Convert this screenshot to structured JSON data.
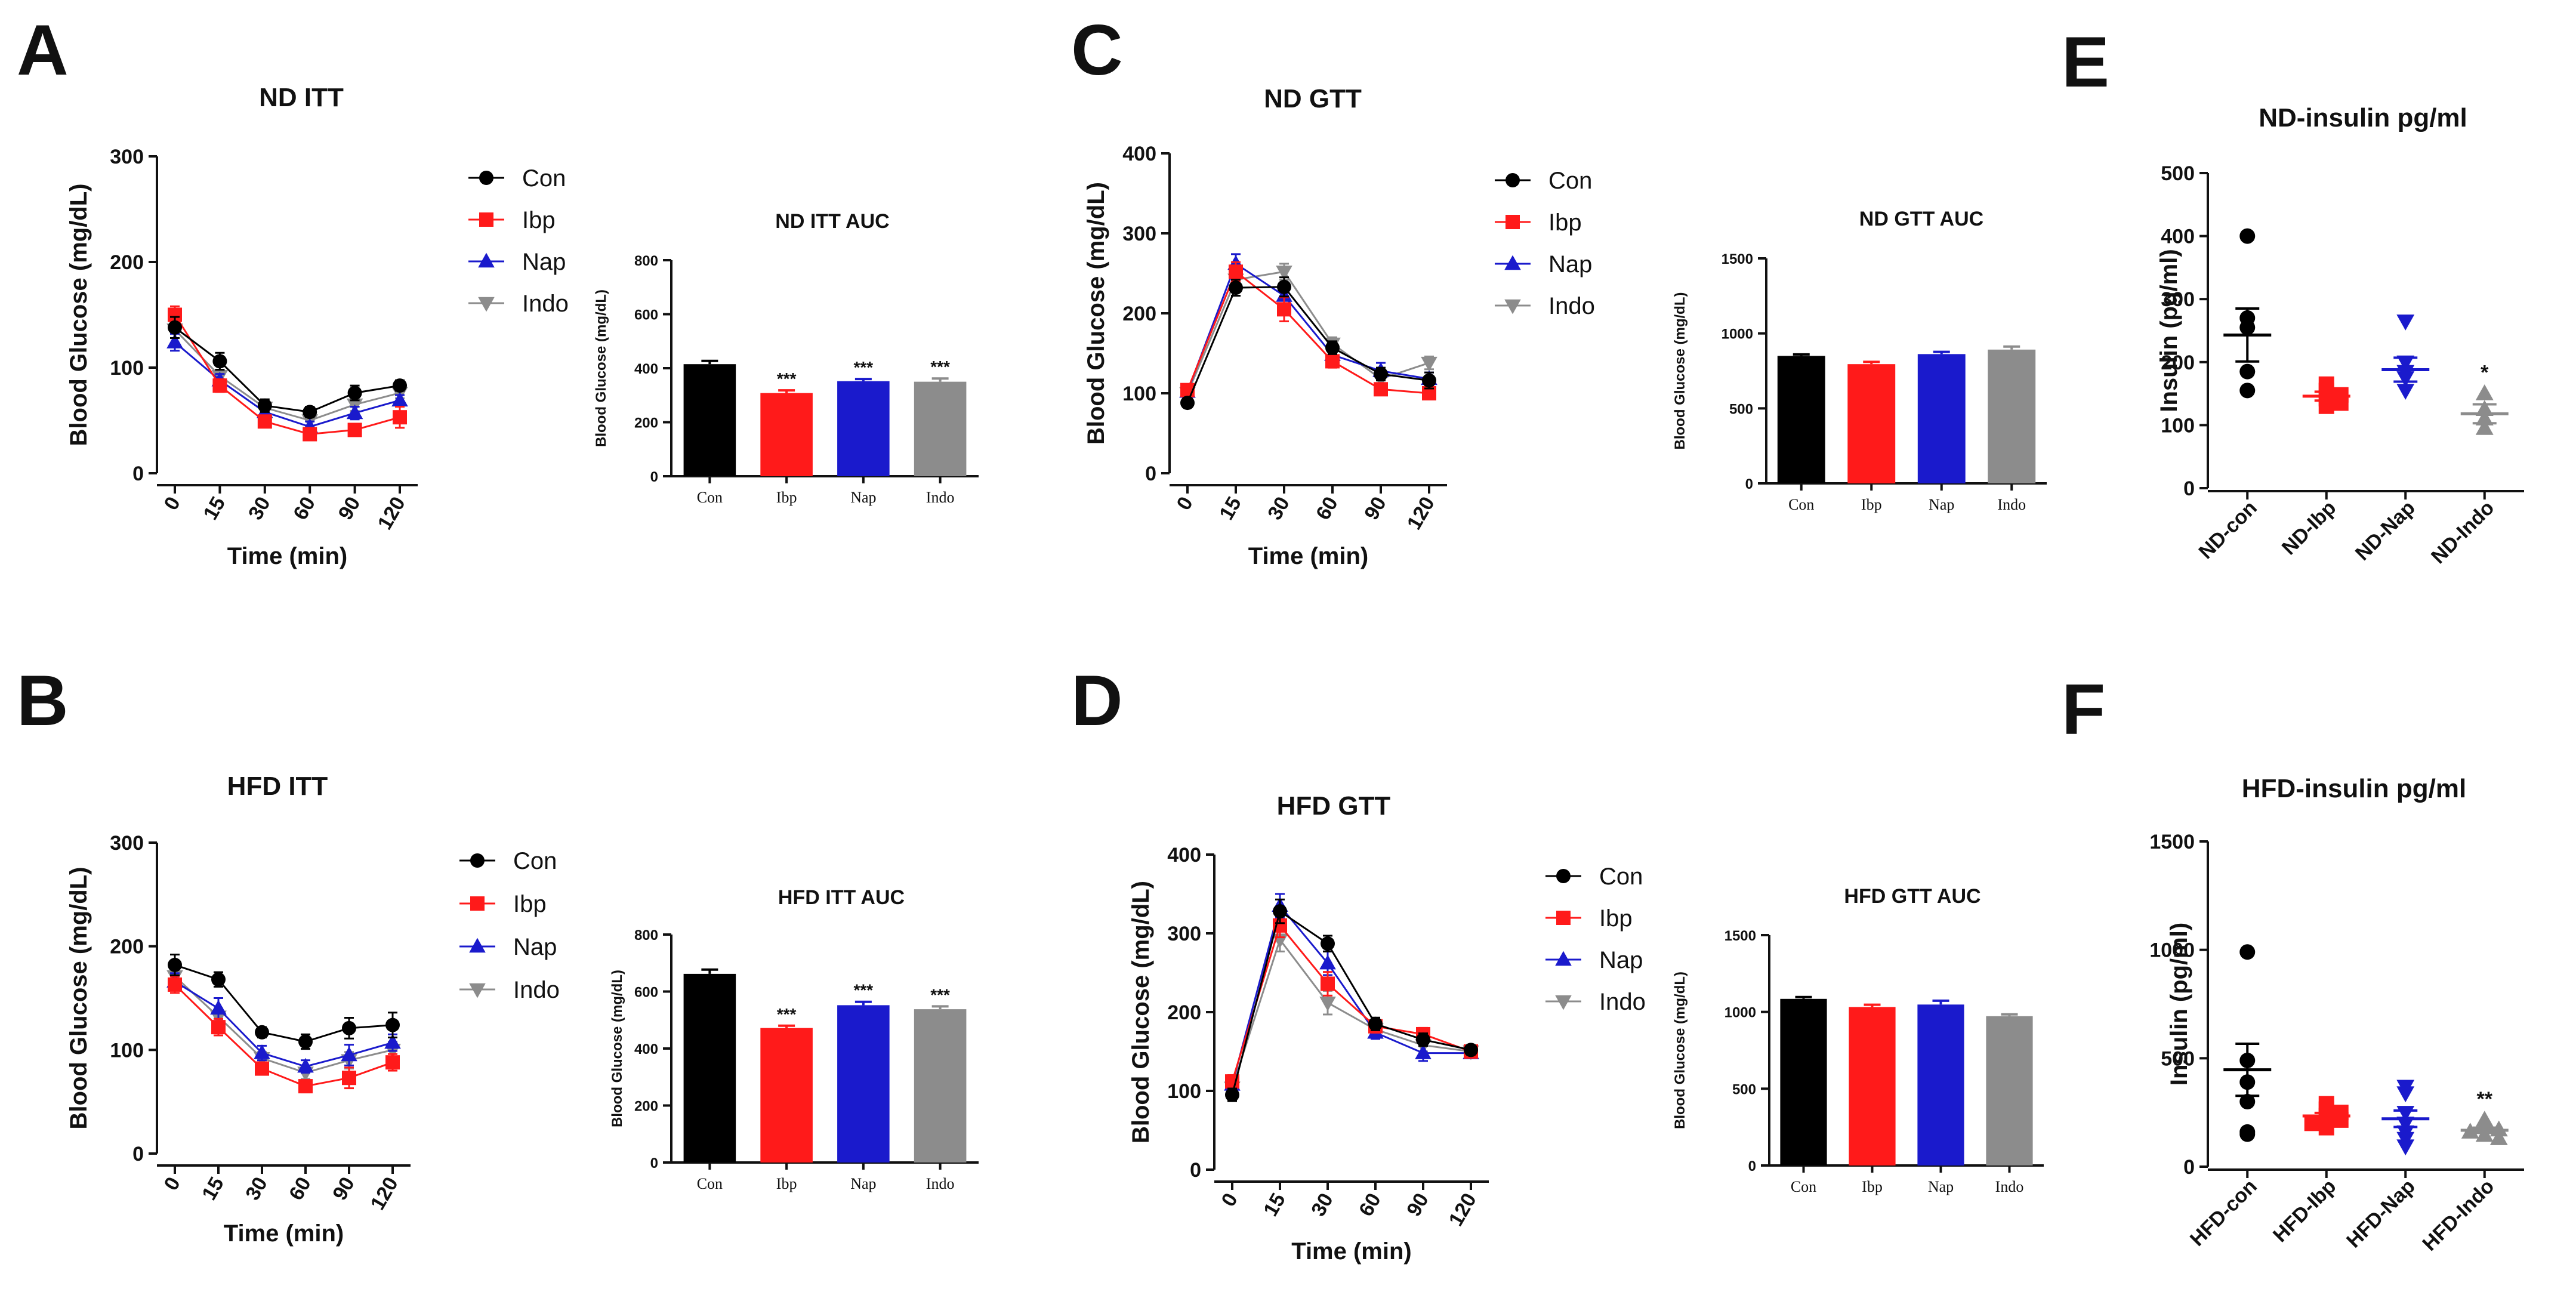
{
  "panel_labels": [
    "A",
    "B",
    "C",
    "D",
    "E",
    "F"
  ],
  "colors": {
    "Con": "#000000",
    "Ibp": "#ff1a1a",
    "Nap": "#1a1acc",
    "Indo": "#8c8c8c"
  },
  "chart_data": [
    {
      "id": "nd-itt",
      "panel": "A",
      "type": "line",
      "title": "ND ITT",
      "xlabel": "Time (min)",
      "ylabel": "Blood Glucose (mg/dL)",
      "x": [
        0,
        15,
        30,
        60,
        90,
        120
      ],
      "xticks": [
        "0",
        "15",
        "30",
        "60",
        "90",
        "120"
      ],
      "ylim": [
        0,
        300
      ],
      "yticks": [
        0,
        100,
        200,
        300
      ],
      "series": [
        {
          "name": "Con",
          "marker": "circle",
          "values": [
            138,
            106,
            64,
            58,
            76,
            83
          ],
          "err": [
            10,
            8,
            6,
            5,
            7,
            5
          ]
        },
        {
          "name": "Ibp",
          "marker": "square",
          "values": [
            150,
            83,
            49,
            37,
            41,
            53
          ],
          "err": [
            8,
            6,
            5,
            5,
            5,
            10
          ]
        },
        {
          "name": "Nap",
          "marker": "triangle",
          "values": [
            124,
            88,
            58,
            44,
            57,
            69
          ],
          "err": [
            8,
            6,
            5,
            5,
            6,
            5
          ]
        },
        {
          "name": "Indo",
          "marker": "triangle-down",
          "values": [
            136,
            92,
            62,
            50,
            65,
            76
          ],
          "err": [
            8,
            6,
            5,
            5,
            6,
            5
          ]
        }
      ]
    },
    {
      "id": "nd-itt-auc",
      "panel": "A",
      "type": "bar",
      "title": "ND ITT AUC",
      "ylabel": "Blood Glucose (mg/dL)",
      "categories": [
        "Con",
        "Ibp",
        "Nap",
        "Indo"
      ],
      "values": [
        415,
        308,
        352,
        350
      ],
      "err": [
        12,
        10,
        8,
        12
      ],
      "sig": [
        "",
        "***",
        "***",
        "***"
      ],
      "ylim": [
        0,
        800
      ],
      "yticks": [
        0,
        200,
        400,
        600,
        800
      ]
    },
    {
      "id": "hfd-itt",
      "panel": "B",
      "type": "line",
      "title": "HFD ITT",
      "xlabel": "Time (min)",
      "ylabel": "Blood Glucose (mg/dL)",
      "x": [
        0,
        15,
        30,
        60,
        90,
        120
      ],
      "xticks": [
        "0",
        "15",
        "30",
        "60",
        "90",
        "120"
      ],
      "ylim": [
        0,
        300
      ],
      "yticks": [
        0,
        100,
        200,
        300
      ],
      "series": [
        {
          "name": "Con",
          "marker": "circle",
          "values": [
            182,
            168,
            117,
            108,
            121,
            124
          ],
          "err": [
            10,
            7,
            5,
            7,
            10,
            12
          ]
        },
        {
          "name": "Ibp",
          "marker": "square",
          "values": [
            163,
            122,
            82,
            65,
            73,
            88
          ],
          "err": [
            8,
            8,
            6,
            6,
            10,
            8
          ]
        },
        {
          "name": "Nap",
          "marker": "triangle",
          "values": [
            166,
            140,
            97,
            84,
            95,
            107
          ],
          "err": [
            8,
            10,
            7,
            6,
            10,
            8
          ]
        },
        {
          "name": "Indo",
          "marker": "triangle-down",
          "values": [
            171,
            132,
            92,
            78,
            90,
            100
          ],
          "err": [
            8,
            8,
            6,
            6,
            8,
            8
          ]
        }
      ]
    },
    {
      "id": "hfd-itt-auc",
      "panel": "B",
      "type": "bar",
      "title": "HFD ITT AUC",
      "ylabel": "Blood Glucose (mg/dL)",
      "categories": [
        "Con",
        "Ibp",
        "Nap",
        "Indo"
      ],
      "values": [
        662,
        472,
        552,
        538
      ],
      "err": [
        15,
        8,
        12,
        10
      ],
      "sig": [
        "",
        "***",
        "***",
        "***"
      ],
      "ylim": [
        0,
        800
      ],
      "yticks": [
        0,
        200,
        400,
        600,
        800
      ]
    },
    {
      "id": "nd-gtt",
      "panel": "C",
      "type": "line",
      "title": "ND GTT",
      "xlabel": "Time (min)",
      "ylabel": "Blood Glucose (mg/dL)",
      "x": [
        0,
        15,
        30,
        60,
        90,
        120
      ],
      "xticks": [
        "0",
        "15",
        "30",
        "60",
        "90",
        "120"
      ],
      "ylim": [
        0,
        400
      ],
      "yticks": [
        0,
        100,
        200,
        300,
        400
      ],
      "series": [
        {
          "name": "Con",
          "marker": "circle",
          "values": [
            88,
            232,
            233,
            157,
            124,
            116
          ],
          "err": [
            5,
            10,
            12,
            8,
            8,
            10
          ]
        },
        {
          "name": "Ibp",
          "marker": "square",
          "values": [
            104,
            252,
            205,
            140,
            105,
            100
          ],
          "err": [
            6,
            12,
            15,
            8,
            7,
            7
          ]
        },
        {
          "name": "Nap",
          "marker": "triangle",
          "values": [
            102,
            262,
            222,
            148,
            128,
            118
          ],
          "err": [
            6,
            12,
            12,
            8,
            10,
            8
          ]
        },
        {
          "name": "Indo",
          "marker": "triangle-down",
          "values": [
            100,
            242,
            252,
            162,
            118,
            138
          ],
          "err": [
            6,
            10,
            10,
            8,
            8,
            8
          ]
        }
      ]
    },
    {
      "id": "nd-gtt-auc",
      "panel": "C",
      "type": "bar",
      "title": "ND GTT AUC",
      "ylabel": "Blood Glucose (mg/dL)",
      "categories": [
        "Con",
        "Ibp",
        "Nap",
        "Indo"
      ],
      "values": [
        850,
        795,
        862,
        892
      ],
      "err": [
        10,
        15,
        15,
        20
      ],
      "sig": [
        "",
        "",
        "",
        ""
      ],
      "ylim": [
        0,
        1500
      ],
      "yticks": [
        0,
        500,
        1000,
        1500
      ]
    },
    {
      "id": "hfd-gtt",
      "panel": "D",
      "type": "line",
      "title": "HFD GTT",
      "xlabel": "Time (min)",
      "ylabel": "Blood Glucose (mg/dL)",
      "x": [
        0,
        15,
        30,
        60,
        90,
        120
      ],
      "xticks": [
        "0",
        "15",
        "30",
        "60",
        "90",
        "120"
      ],
      "ylim": [
        0,
        400
      ],
      "yticks": [
        0,
        100,
        200,
        300,
        400
      ],
      "series": [
        {
          "name": "Con",
          "marker": "circle",
          "values": [
            95,
            328,
            287,
            185,
            165,
            152
          ],
          "err": [
            8,
            15,
            10,
            8,
            8,
            6
          ]
        },
        {
          "name": "Ibp",
          "marker": "square",
          "values": [
            112,
            310,
            236,
            182,
            172,
            150
          ],
          "err": [
            8,
            15,
            15,
            8,
            8,
            6
          ]
        },
        {
          "name": "Nap",
          "marker": "triangle",
          "values": [
            108,
            335,
            262,
            174,
            148,
            148
          ],
          "err": [
            8,
            15,
            15,
            8,
            10,
            6
          ]
        },
        {
          "name": "Indo",
          "marker": "triangle-down",
          "values": [
            104,
            292,
            212,
            178,
            158,
            150
          ],
          "err": [
            8,
            15,
            15,
            8,
            8,
            6
          ]
        }
      ]
    },
    {
      "id": "hfd-gtt-auc",
      "panel": "D",
      "type": "bar",
      "title": "HFD GTT AUC",
      "ylabel": "Blood Glucose (mg/dL)",
      "categories": [
        "Con",
        "Ibp",
        "Nap",
        "Indo"
      ],
      "values": [
        1085,
        1032,
        1048,
        972
      ],
      "err": [
        12,
        15,
        25,
        12
      ],
      "sig": [
        "",
        "",
        "",
        ""
      ],
      "ylim": [
        0,
        1500
      ],
      "yticks": [
        0,
        500,
        1000,
        1500
      ]
    },
    {
      "id": "nd-insulin",
      "panel": "E",
      "type": "scatter",
      "title": "ND-insulin pg/ml",
      "ylabel": "Insulin (pg/ml)",
      "categories": [
        "ND-con",
        "ND-Ibp",
        "ND-Nap",
        "ND-Indo"
      ],
      "ylim": [
        0,
        500
      ],
      "yticks": [
        0,
        100,
        200,
        300,
        400,
        500
      ],
      "groups": [
        {
          "name": "ND-con",
          "key": "Con",
          "marker": "circle",
          "points": [
            400,
            270,
            255,
            185,
            155
          ],
          "mean": 243,
          "sem": 42,
          "sig": ""
        },
        {
          "name": "ND-Ibp",
          "key": "Ibp",
          "marker": "square",
          "points": [
            165,
            155,
            148,
            142,
            135,
            130
          ],
          "mean": 146,
          "sem": 7,
          "sig": ""
        },
        {
          "name": "ND-Nap",
          "key": "Nap",
          "marker": "triangle-down",
          "points": [
            265,
            200,
            185,
            175,
            155
          ],
          "mean": 188,
          "sem": 19,
          "sig": ""
        },
        {
          "name": "ND-Indo",
          "key": "Indo",
          "marker": "triangle",
          "points": [
            150,
            125,
            110,
            95
          ],
          "mean": 118,
          "sem": 15,
          "sig": "*"
        }
      ]
    },
    {
      "id": "hfd-insulin",
      "panel": "F",
      "type": "scatter",
      "title": "HFD-insulin pg/ml",
      "ylabel": "Insulin (pg/ml)",
      "categories": [
        "HFD-con",
        "HFD-Ibp",
        "HFD-Nap",
        "HFD-Indo"
      ],
      "ylim": [
        0,
        1500
      ],
      "yticks": [
        0,
        500,
        1000,
        1500
      ],
      "groups": [
        {
          "name": "HFD-con",
          "key": "Con",
          "marker": "circle",
          "points": [
            990,
            490,
            390,
            300,
            160,
            150
          ],
          "mean": 447,
          "sem": 120,
          "sig": ""
        },
        {
          "name": "HFD-Ibp",
          "key": "Ibp",
          "marker": "square",
          "points": [
            290,
            265,
            250,
            235,
            215,
            200,
            180
          ],
          "mean": 234,
          "sem": 14,
          "sig": ""
        },
        {
          "name": "HFD-Nap",
          "key": "Nap",
          "marker": "triangle-down",
          "points": [
            370,
            340,
            250,
            200,
            160,
            130,
            95
          ],
          "mean": 221,
          "sem": 38,
          "sig": ""
        },
        {
          "name": "HFD-Indo",
          "key": "Indo",
          "marker": "triangle",
          "points": [
            215,
            190,
            170,
            160,
            145,
            130
          ],
          "mean": 168,
          "sem": 12,
          "sig": "**"
        }
      ]
    }
  ]
}
